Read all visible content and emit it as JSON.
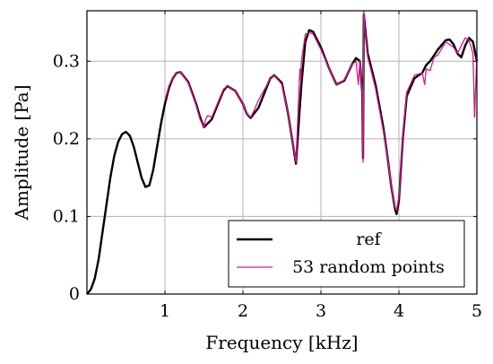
{
  "chart_data": {
    "type": "line",
    "title": "",
    "xlabel": "Frequency [kHz]",
    "ylabel": "Amplitude [Pa]",
    "xlim": [
      0,
      5
    ],
    "ylim": [
      0,
      0.365
    ],
    "grid": true,
    "legend_position": "bottom-right",
    "x_ticks": [
      {
        "value": 1,
        "label": "1"
      },
      {
        "value": 2,
        "label": "2"
      },
      {
        "value": 3,
        "label": "3"
      },
      {
        "value": 4,
        "label": "4"
      },
      {
        "value": 5,
        "label": "5"
      }
    ],
    "y_ticks": [
      {
        "value": 0,
        "label": "0"
      },
      {
        "value": 0.1,
        "label": "0.1"
      },
      {
        "value": 0.2,
        "label": "0.2"
      },
      {
        "value": 0.3,
        "label": "0.3"
      }
    ],
    "series": [
      {
        "name": "ref",
        "color": "#000000",
        "x": [
          0,
          0.05,
          0.1,
          0.15,
          0.2,
          0.25,
          0.3,
          0.35,
          0.4,
          0.45,
          0.5,
          0.55,
          0.6,
          0.65,
          0.7,
          0.75,
          0.8,
          0.85,
          0.9,
          0.95,
          1.0,
          1.05,
          1.1,
          1.15,
          1.2,
          1.3,
          1.4,
          1.45,
          1.5,
          1.6,
          1.7,
          1.75,
          1.8,
          1.9,
          2.0,
          2.05,
          2.1,
          2.2,
          2.3,
          2.35,
          2.4,
          2.5,
          2.58,
          2.63,
          2.68,
          2.75,
          2.8,
          2.85,
          2.9,
          3.0,
          3.1,
          3.2,
          3.3,
          3.4,
          3.45,
          3.5,
          3.53,
          3.54,
          3.55,
          3.56,
          3.6,
          3.7,
          3.8,
          3.85,
          3.9,
          3.95,
          3.97,
          4.0,
          4.05,
          4.1,
          4.2,
          4.3,
          4.35,
          4.4,
          4.5,
          4.6,
          4.65,
          4.7,
          4.75,
          4.8,
          4.85,
          4.9,
          4.95,
          5.0
        ],
        "y": [
          0,
          0.006,
          0.02,
          0.045,
          0.08,
          0.115,
          0.15,
          0.178,
          0.196,
          0.206,
          0.209,
          0.204,
          0.19,
          0.17,
          0.15,
          0.138,
          0.14,
          0.16,
          0.19,
          0.22,
          0.245,
          0.265,
          0.278,
          0.285,
          0.286,
          0.273,
          0.245,
          0.228,
          0.215,
          0.225,
          0.25,
          0.262,
          0.268,
          0.262,
          0.245,
          0.232,
          0.227,
          0.24,
          0.265,
          0.278,
          0.282,
          0.272,
          0.232,
          0.2,
          0.168,
          0.27,
          0.325,
          0.34,
          0.338,
          0.318,
          0.292,
          0.27,
          0.275,
          0.296,
          0.304,
          0.3,
          0.26,
          0.175,
          0.36,
          0.35,
          0.31,
          0.27,
          0.215,
          0.18,
          0.14,
          0.11,
          0.103,
          0.12,
          0.2,
          0.255,
          0.278,
          0.285,
          0.295,
          0.3,
          0.315,
          0.327,
          0.328,
          0.322,
          0.31,
          0.305,
          0.32,
          0.33,
          0.325,
          0.3
        ]
      },
      {
        "name": "53 random points",
        "color": "#e0158f",
        "x": [
          1.0,
          1.05,
          1.1,
          1.15,
          1.2,
          1.3,
          1.4,
          1.45,
          1.5,
          1.52,
          1.55,
          1.6,
          1.7,
          1.75,
          1.8,
          1.9,
          2.0,
          2.05,
          2.1,
          2.15,
          2.2,
          2.3,
          2.35,
          2.4,
          2.5,
          2.58,
          2.63,
          2.68,
          2.73,
          2.74,
          2.75,
          2.8,
          2.85,
          2.9,
          3.0,
          3.1,
          3.2,
          3.3,
          3.4,
          3.45,
          3.48,
          3.5,
          3.53,
          3.54,
          3.55,
          3.56,
          3.6,
          3.7,
          3.8,
          3.85,
          3.9,
          3.95,
          3.97,
          4.0,
          4.05,
          4.1,
          4.2,
          4.3,
          4.33,
          4.35,
          4.4,
          4.45,
          4.5,
          4.6,
          4.7,
          4.75,
          4.8,
          4.85,
          4.9,
          4.95,
          4.97,
          5.0
        ],
        "y": [
          0.25,
          0.268,
          0.279,
          0.285,
          0.286,
          0.272,
          0.243,
          0.225,
          0.215,
          0.225,
          0.23,
          0.228,
          0.252,
          0.264,
          0.268,
          0.262,
          0.245,
          0.232,
          0.228,
          0.238,
          0.25,
          0.268,
          0.279,
          0.282,
          0.27,
          0.232,
          0.2,
          0.17,
          0.29,
          0.275,
          0.3,
          0.335,
          0.337,
          0.335,
          0.315,
          0.292,
          0.27,
          0.276,
          0.296,
          0.3,
          0.27,
          0.302,
          0.26,
          0.17,
          0.365,
          0.345,
          0.305,
          0.265,
          0.21,
          0.18,
          0.14,
          0.112,
          0.108,
          0.125,
          0.205,
          0.26,
          0.282,
          0.285,
          0.27,
          0.29,
          0.288,
          0.305,
          0.308,
          0.325,
          0.318,
          0.31,
          0.32,
          0.33,
          0.327,
          0.31,
          0.228,
          0.31
        ]
      }
    ]
  }
}
